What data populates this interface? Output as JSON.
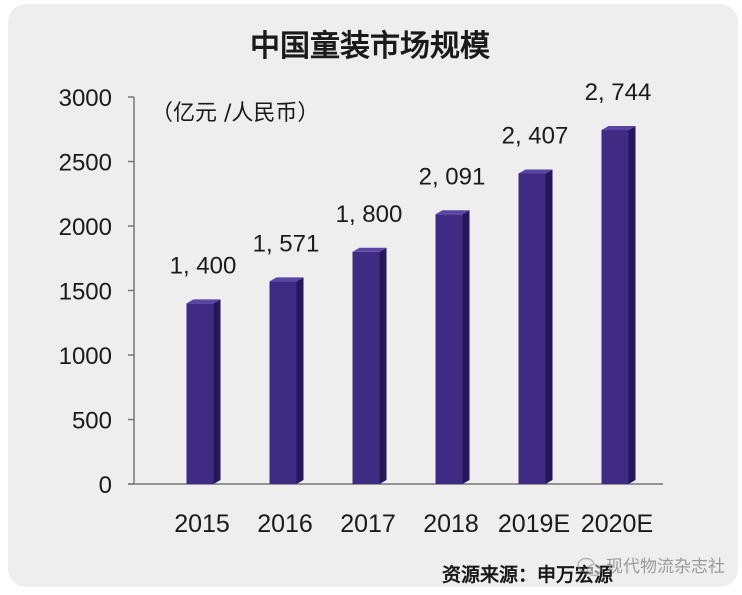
{
  "chart_data": {
    "type": "bar",
    "title": "中国童装市场规模",
    "ylabel": "（亿元 /人民币）",
    "xlabel": "",
    "categories": [
      "2015",
      "2016",
      "2017",
      "2018",
      "2019E",
      "2020E"
    ],
    "values": [
      1400,
      1571,
      1800,
      2091,
      2407,
      2744
    ],
    "value_labels": [
      "1, 400",
      "1, 571",
      "1, 800",
      "2, 091",
      "2, 407",
      "2, 744"
    ],
    "ylim": [
      0,
      3000
    ],
    "yticks": [
      "0",
      "500",
      "1000",
      "1500",
      "2000",
      "2500",
      "3000"
    ],
    "grid": false,
    "legend": "none",
    "bar_colors": {
      "front": "#3f2a84",
      "side": "#26165c",
      "top": "#5a44a4"
    }
  },
  "source": "资源来源：申万宏源",
  "watermark": "现代物流杂志社"
}
